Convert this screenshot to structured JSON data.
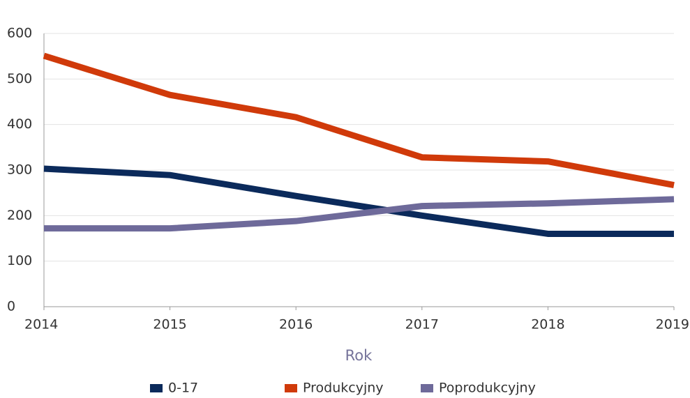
{
  "chart_data": {
    "type": "line",
    "x": [
      2014,
      2015,
      2016,
      2017,
      2018,
      2019
    ],
    "xlim": [
      2014,
      2019
    ],
    "xticks": [
      2014,
      2015,
      2016,
      2017,
      2018,
      2019
    ],
    "ylim": [
      0,
      600
    ],
    "yticks": [
      0,
      100,
      200,
      300,
      400,
      500,
      600
    ],
    "x_label": "Rok",
    "grid": true,
    "legend": "bottom",
    "series": [
      {
        "name": "0-17",
        "color": "#0b2a5b",
        "values": [
          303,
          289,
          243,
          200,
          160,
          160
        ]
      },
      {
        "name": "Produkcyjny",
        "color": "#d03a0a",
        "values": [
          551,
          465,
          416,
          328,
          319,
          267
        ]
      },
      {
        "name": "Poprodukcyjny",
        "color": "#6e6a9a",
        "values": [
          172,
          172,
          188,
          221,
          227,
          236
        ]
      }
    ]
  }
}
